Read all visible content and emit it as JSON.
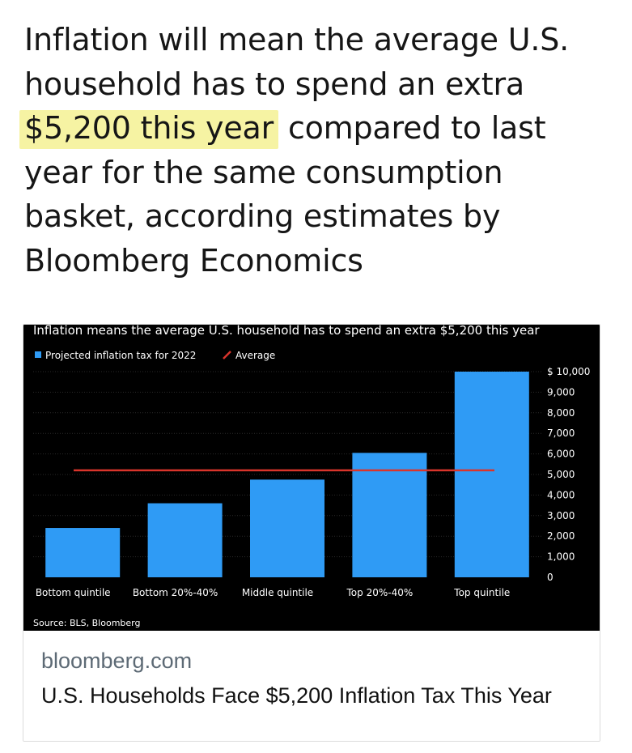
{
  "tweet": {
    "text_before": "Inflation will mean the average U.S. household has to spend an extra",
    "text_highlight": "$5,200 this year",
    "text_after": "compared to last year for the same consumption basket, according estimates by Bloomberg Economics"
  },
  "link_card": {
    "domain": "bloomberg.com",
    "headline": "U.S. Households Face $5,200 Inflation Tax This Year"
  },
  "chart_data": {
    "type": "bar",
    "title": "Inflation means the average U.S. household has to spend an extra $5,200 this year",
    "legend": [
      {
        "label": "Projected inflation tax for 2022",
        "color": "#2f9bf5",
        "kind": "bar"
      },
      {
        "label": "Average",
        "color": "#d9342b",
        "kind": "line"
      }
    ],
    "legend_placement": "top-left",
    "categories": [
      "Bottom quintile",
      "Bottom 20%-40%",
      "Middle quintile",
      "Top 20%-40%",
      "Top quintile"
    ],
    "values": [
      2400,
      3600,
      4750,
      6050,
      10000
    ],
    "average": 5200,
    "ylim": [
      0,
      10000
    ],
    "yticks": [
      "0",
      "1,000",
      "2,000",
      "3,000",
      "4,000",
      "5,000",
      "6,000",
      "7,000",
      "8,000",
      "9,000",
      "$ 10,000"
    ],
    "y_axis_position": "right",
    "grid": true,
    "source": "Source: BLS, Bloomberg",
    "colors": {
      "background": "#000000",
      "bar": "#2f9bf5",
      "average": "#d9342b",
      "text": "#ffffff",
      "grid": "#2a2a2a"
    }
  }
}
